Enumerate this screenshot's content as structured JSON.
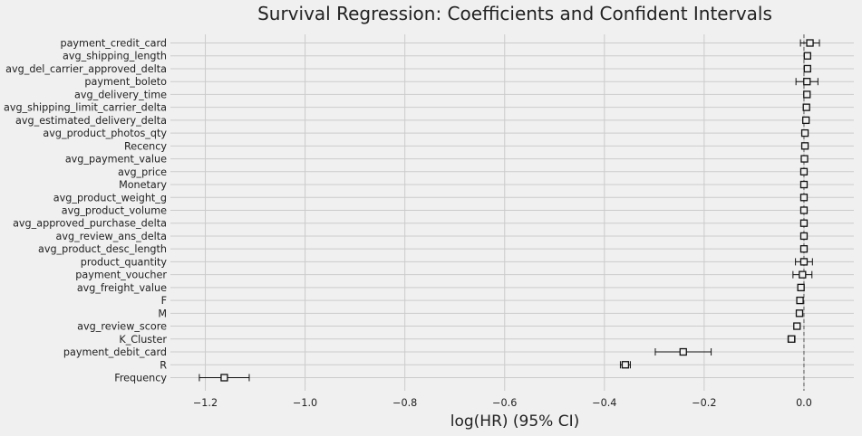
{
  "chart_data": {
    "type": "scatter",
    "title": "Survival Regression: Coefficients and Confident Intervals",
    "xlabel": "log(HR) (95% CI)",
    "ylabel": "",
    "xlim": [
      -1.27,
      0.1
    ],
    "xticks": [
      -1.2,
      -1.0,
      -0.8,
      -0.6,
      -0.4,
      -0.2,
      0.0
    ],
    "xtick_labels": [
      "−1.2",
      "−1.0",
      "−0.8",
      "−0.6",
      "−0.4",
      "−0.2",
      "0.0"
    ],
    "reference_line": 0.0,
    "grid": true,
    "covariates": [
      {
        "name": "payment_credit_card",
        "coef": 0.012,
        "lower": -0.007,
        "upper": 0.031
      },
      {
        "name": "avg_shipping_length",
        "coef": 0.007,
        "lower": 0.004,
        "upper": 0.01
      },
      {
        "name": "avg_del_carrier_approved_delta",
        "coef": 0.007,
        "lower": 0.004,
        "upper": 0.01
      },
      {
        "name": "payment_boleto",
        "coef": 0.006,
        "lower": -0.016,
        "upper": 0.028
      },
      {
        "name": "avg_delivery_time",
        "coef": 0.006,
        "lower": 0.004,
        "upper": 0.008
      },
      {
        "name": "avg_shipping_limit_carrier_delta",
        "coef": 0.005,
        "lower": 0.003,
        "upper": 0.007
      },
      {
        "name": "avg_estimated_delivery_delta",
        "coef": 0.004,
        "lower": 0.002,
        "upper": 0.006
      },
      {
        "name": "avg_product_photos_qty",
        "coef": 0.002,
        "lower": 0.0,
        "upper": 0.004
      },
      {
        "name": "Recency",
        "coef": 0.002,
        "lower": 0.001,
        "upper": 0.003
      },
      {
        "name": "avg_payment_value",
        "coef": 0.001,
        "lower": 0.0,
        "upper": 0.002
      },
      {
        "name": "avg_price",
        "coef": 0.0,
        "lower": -0.001,
        "upper": 0.001
      },
      {
        "name": "Monetary",
        "coef": 0.0,
        "lower": -0.001,
        "upper": 0.001
      },
      {
        "name": "avg_product_weight_g",
        "coef": 0.0,
        "lower": -0.001,
        "upper": 0.001
      },
      {
        "name": "avg_product_volume",
        "coef": 0.0,
        "lower": -0.001,
        "upper": 0.001
      },
      {
        "name": "avg_approved_purchase_delta",
        "coef": 0.0,
        "lower": -0.002,
        "upper": 0.002
      },
      {
        "name": "avg_review_ans_delta",
        "coef": 0.0,
        "lower": -0.002,
        "upper": 0.002
      },
      {
        "name": "avg_product_desc_length",
        "coef": 0.0,
        "lower": -0.001,
        "upper": 0.001
      },
      {
        "name": "product_quantity",
        "coef": 0.0,
        "lower": -0.017,
        "upper": 0.017
      },
      {
        "name": "payment_voucher",
        "coef": -0.003,
        "lower": -0.022,
        "upper": 0.016
      },
      {
        "name": "avg_freight_value",
        "coef": -0.006,
        "lower": -0.008,
        "upper": -0.004
      },
      {
        "name": "F",
        "coef": -0.008,
        "lower": -0.01,
        "upper": -0.006
      },
      {
        "name": "M",
        "coef": -0.009,
        "lower": -0.013,
        "upper": -0.005
      },
      {
        "name": "avg_review_score",
        "coef": -0.014,
        "lower": -0.017,
        "upper": -0.011
      },
      {
        "name": "K_Cluster",
        "coef": -0.025,
        "lower": -0.032,
        "upper": -0.018
      },
      {
        "name": "payment_debit_card",
        "coef": -0.242,
        "lower": -0.298,
        "upper": -0.186
      },
      {
        "name": "R",
        "coef": -0.358,
        "lower": -0.368,
        "upper": -0.348
      },
      {
        "name": "Frequency",
        "coef": -1.162,
        "lower": -1.212,
        "upper": -1.112
      }
    ]
  }
}
